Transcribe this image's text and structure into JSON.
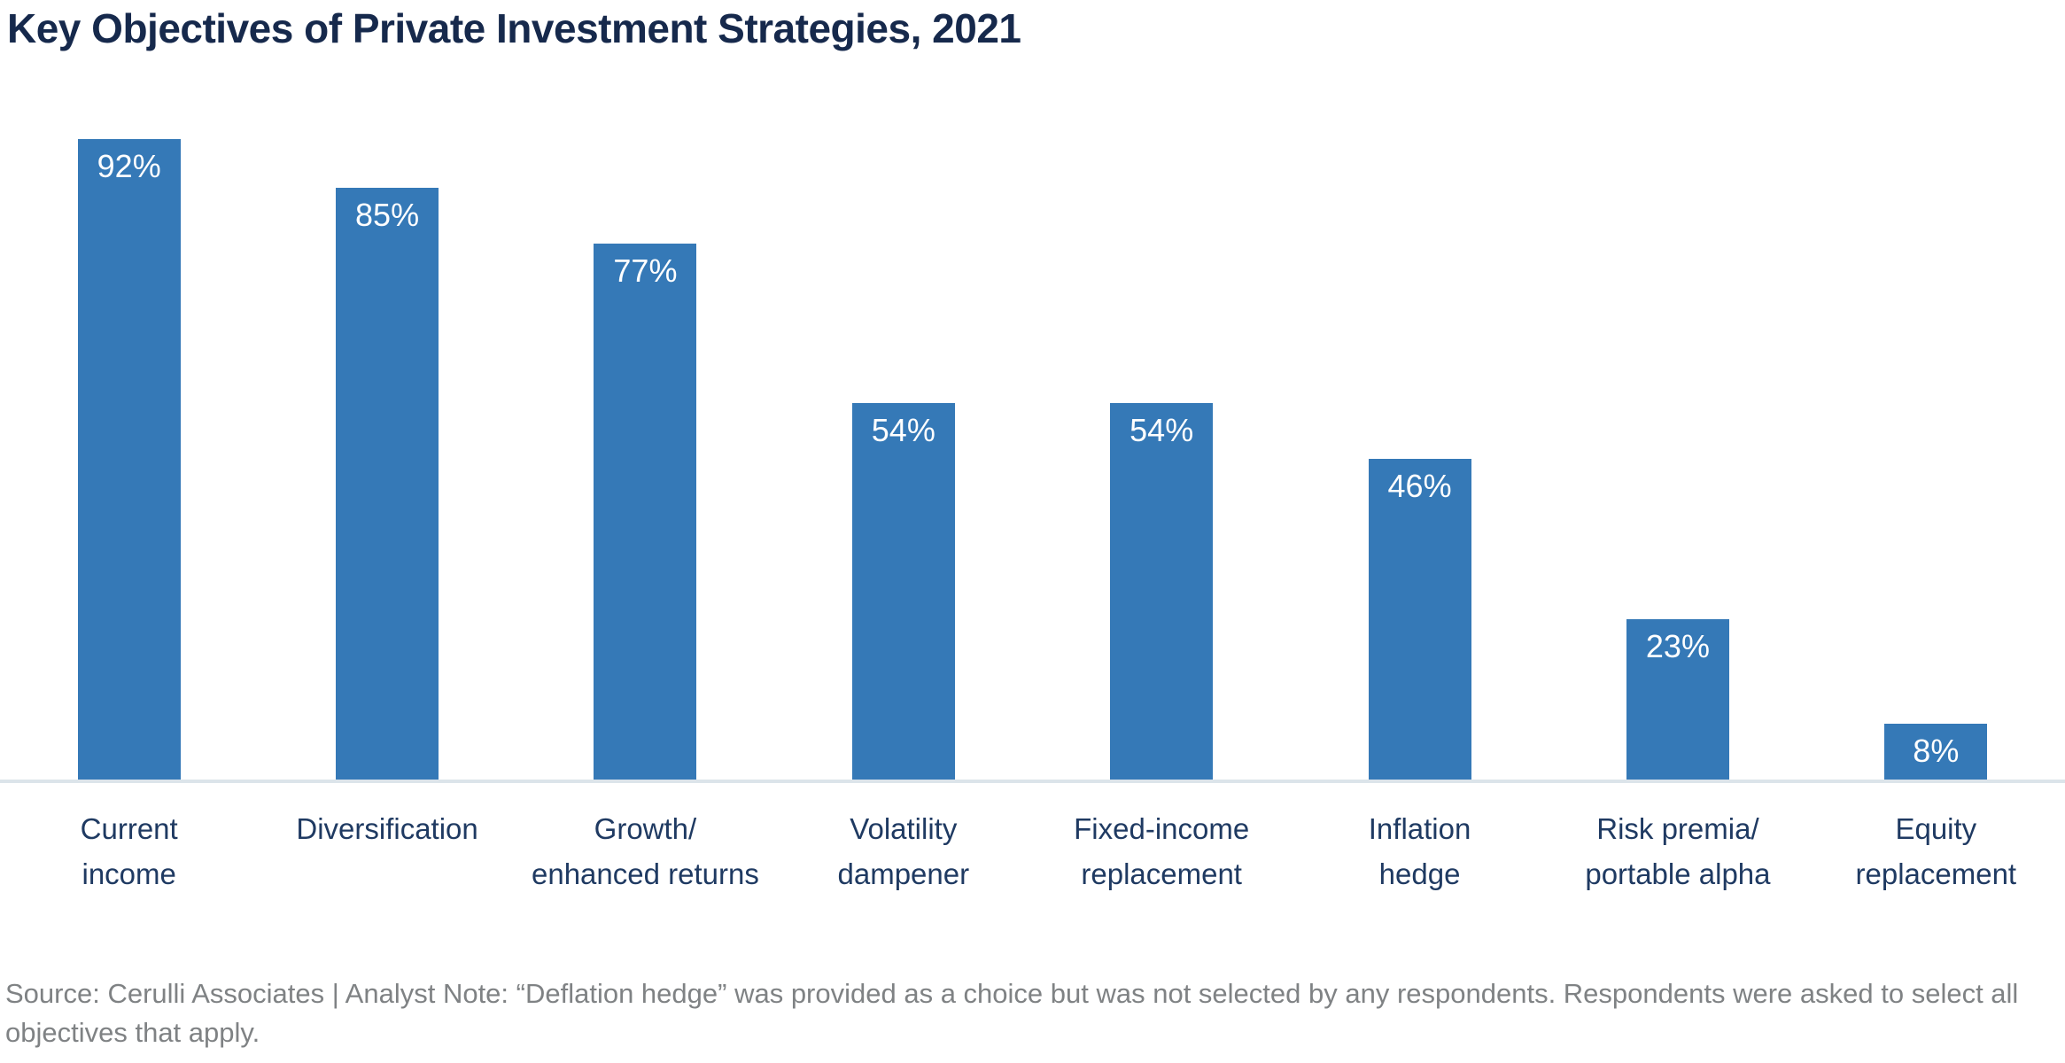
{
  "chart_data": {
    "type": "bar",
    "title": "Key Objectives of Private Investment Strategies, 2021",
    "categories": [
      "Current\nincome",
      "Diversification",
      "Growth/\nenhanced returns",
      "Volatility\ndampener",
      "Fixed-income\nreplacement",
      "Inflation\nhedge",
      "Risk premia/\nportable alpha",
      "Equity\nreplacement"
    ],
    "values": [
      92,
      85,
      77,
      54,
      54,
      46,
      23,
      8
    ],
    "value_labels": [
      "92%",
      "85%",
      "77%",
      "54%",
      "54%",
      "46%",
      "23%",
      "8%"
    ],
    "xlabel": "",
    "ylabel": "",
    "ylim": [
      0,
      100
    ],
    "grid": false,
    "legend_position": "none",
    "bar_color": "#3579B7",
    "value_label_color": "#FFFFFF",
    "title_color": "#16294C",
    "category_label_color": "#1F3A62",
    "axis_line_color": "#DCE4EA"
  },
  "footnote": "Source: Cerulli Associates  |  Analyst Note: “Deflation hedge” was provided as a choice but was not selected by any respondents. Respondents were asked to select all objectives that apply."
}
